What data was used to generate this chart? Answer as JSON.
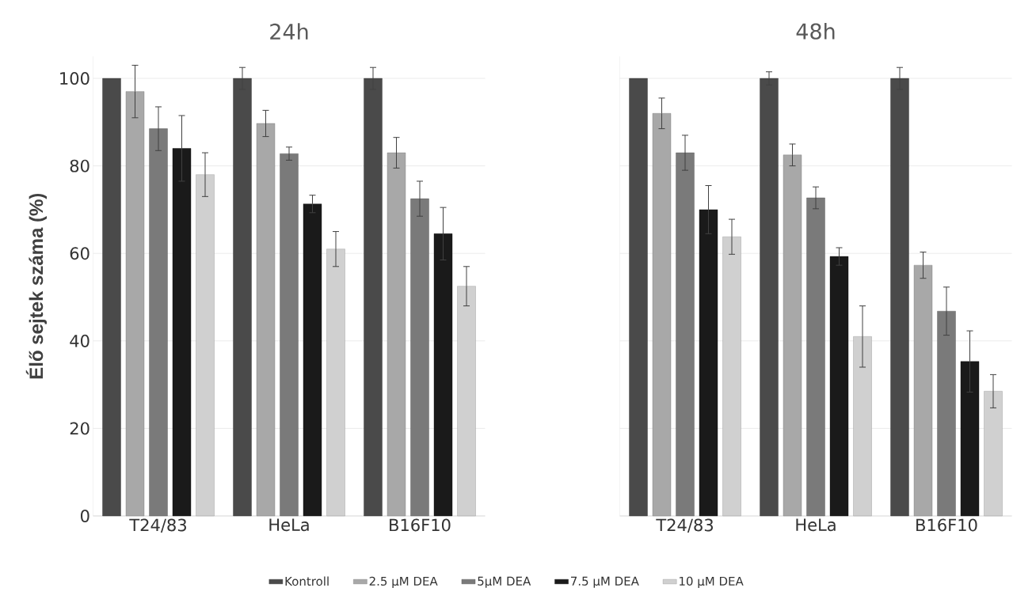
{
  "chart_data": [
    {
      "type": "bar",
      "title": "24h",
      "ylabel": "Élő sejtek száma (%)",
      "categories": [
        "T24/83",
        "HeLa",
        "B16F10"
      ],
      "ylim": [
        0,
        105
      ],
      "yticks": [
        0,
        20,
        40,
        60,
        80,
        100
      ],
      "grid": "y",
      "legend": "bottom",
      "series": [
        {
          "name": "Kontroll",
          "color": "#4a4a4a",
          "values": [
            100,
            100,
            100
          ],
          "errors": [
            null,
            2.5,
            2.5
          ]
        },
        {
          "name": "2.5 µM DEA",
          "color": "#a8a8a8",
          "values": [
            97,
            89.7,
            83
          ],
          "errors": [
            6,
            3,
            3.5
          ]
        },
        {
          "name": "5µM DEA",
          "color": "#7a7a7a",
          "values": [
            88.5,
            82.8,
            72.5
          ],
          "errors": [
            5,
            1.5,
            4
          ]
        },
        {
          "name": "7.5 µM DEA",
          "color": "#1a1a1a",
          "values": [
            84,
            71.3,
            64.5
          ],
          "errors": [
            7.5,
            2,
            6
          ]
        },
        {
          "name": "10 µM DEA",
          "color": "#d0d0d0",
          "values": [
            78,
            61,
            52.5
          ],
          "errors": [
            5,
            4,
            4.5
          ]
        }
      ]
    },
    {
      "type": "bar",
      "title": "48h",
      "categories": [
        "T24/83",
        "HeLa",
        "B16F10"
      ],
      "ylim": [
        0,
        105
      ],
      "yticks": [
        0,
        20,
        40,
        60,
        80,
        100
      ],
      "grid": "y",
      "tick_labels": "x",
      "series": [
        {
          "color": "#4a4a4a",
          "values": [
            100,
            100,
            100
          ],
          "errors": [
            null,
            1.5,
            2.5
          ]
        },
        {
          "color": "#a8a8a8",
          "values": [
            92,
            82.5,
            57.3
          ],
          "errors": [
            3.5,
            2.5,
            3
          ]
        },
        {
          "color": "#7a7a7a",
          "values": [
            83,
            72.7,
            46.8
          ],
          "errors": [
            4,
            2.5,
            5.5
          ]
        },
        {
          "color": "#1a1a1a",
          "values": [
            70,
            59.3,
            35.3
          ],
          "errors": [
            5.5,
            2,
            7
          ]
        },
        {
          "color": "#d0d0d0",
          "values": [
            63.8,
            41,
            28.5
          ],
          "errors": [
            4,
            7,
            3.8
          ]
        }
      ]
    }
  ]
}
